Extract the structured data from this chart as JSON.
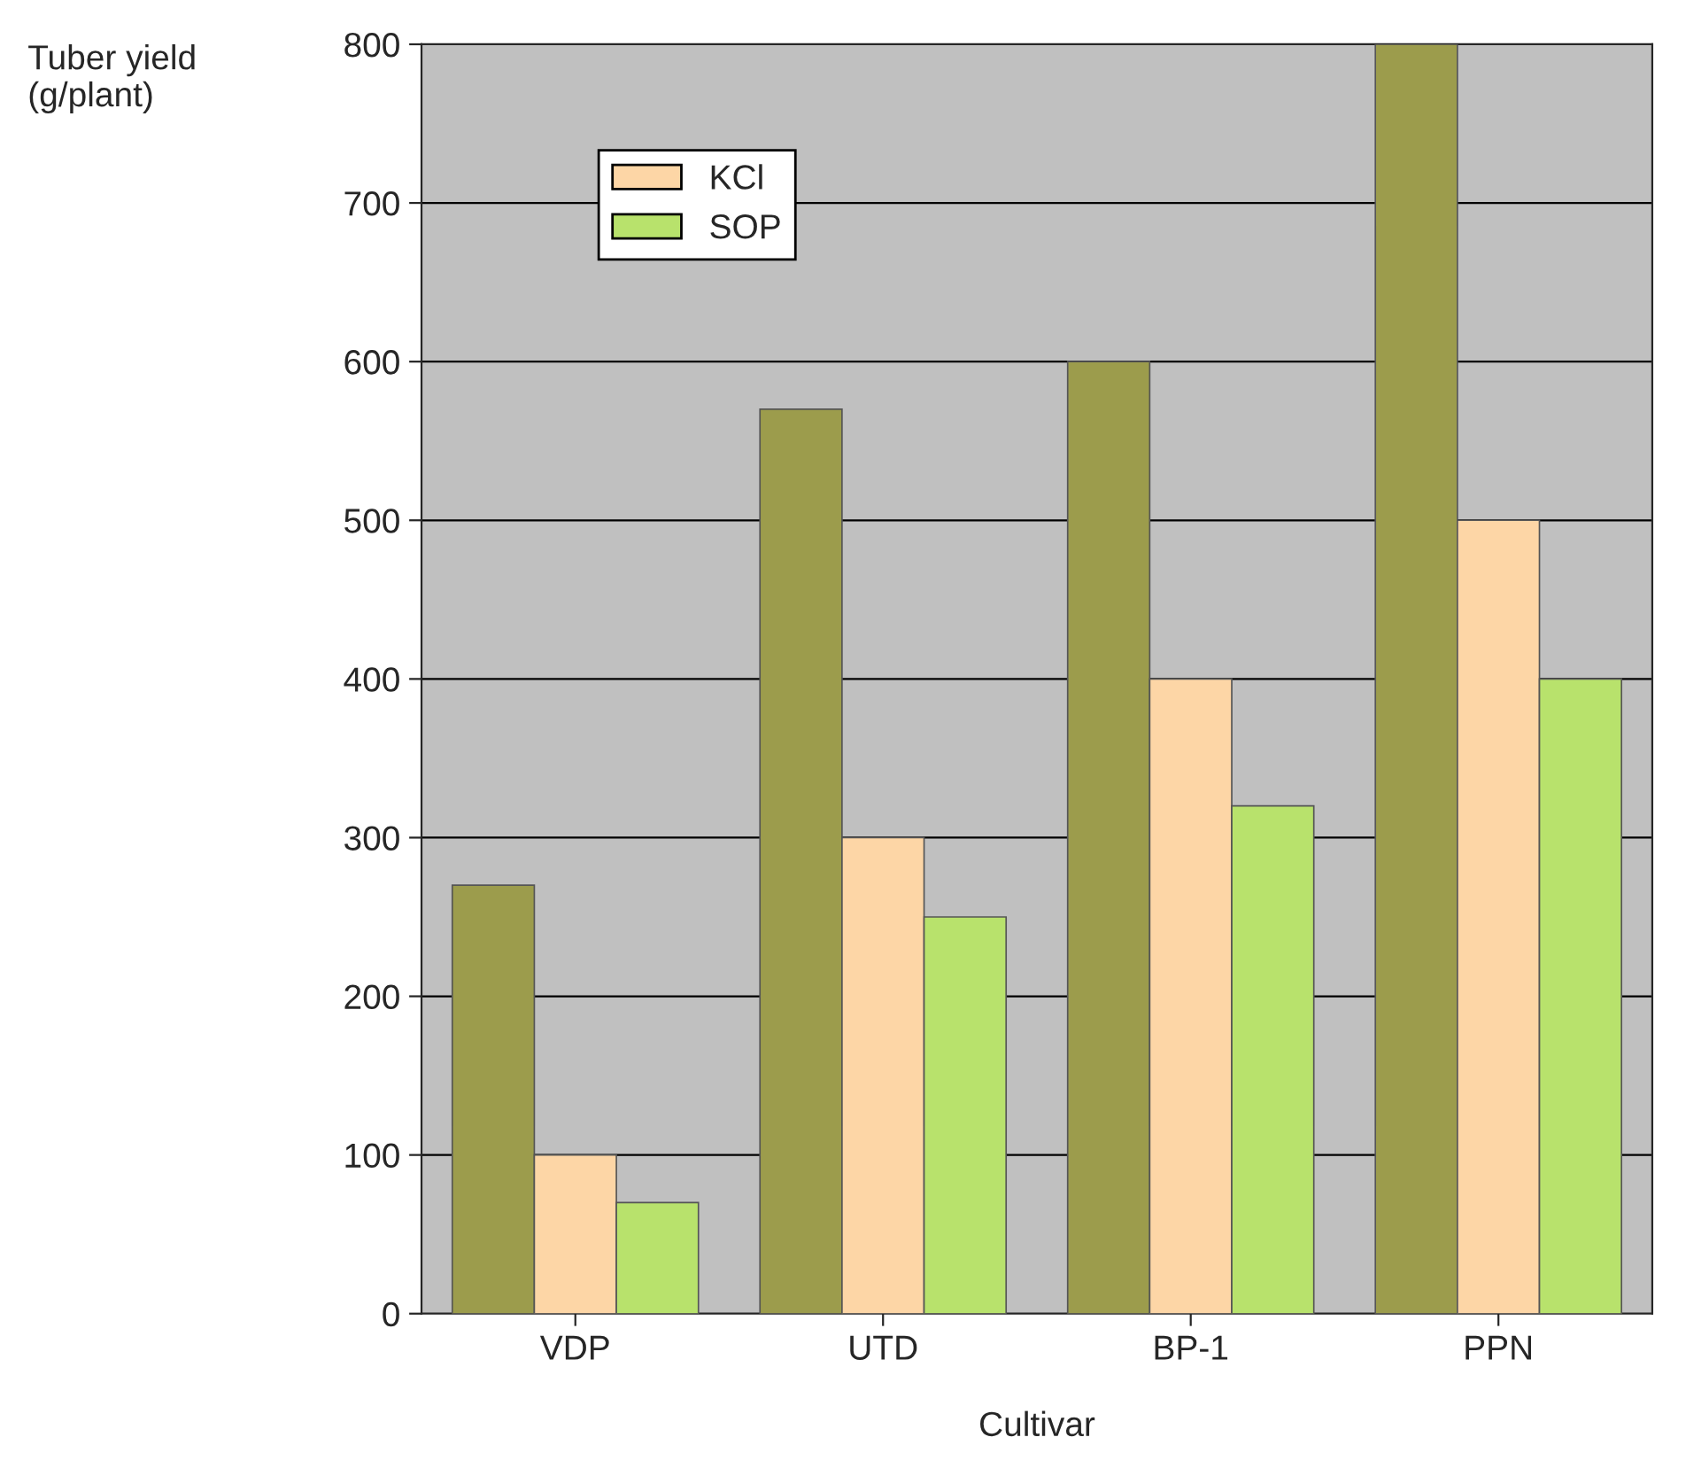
{
  "chart_data": {
    "type": "bar",
    "xlabel": "Cultivar",
    "ylabel": "Tuber yield\n(g/plant)",
    "categories": [
      "VDP",
      "UTD",
      "BP-1",
      "PPN"
    ],
    "series": [
      {
        "color": "#9c9c4c",
        "values": [
          270,
          570,
          600,
          800
        ]
      },
      {
        "name": "KCl",
        "color": "#fdd6a6",
        "values": [
          100,
          300,
          400,
          500
        ]
      },
      {
        "name": "SOP",
        "color": "#b8e26c",
        "values": [
          70,
          250,
          320,
          400
        ]
      }
    ],
    "ylim": [
      0,
      800
    ],
    "yticks": [
      0,
      100,
      200,
      300,
      400,
      500,
      600,
      700,
      800
    ],
    "grid": "y",
    "legend": "top left"
  }
}
